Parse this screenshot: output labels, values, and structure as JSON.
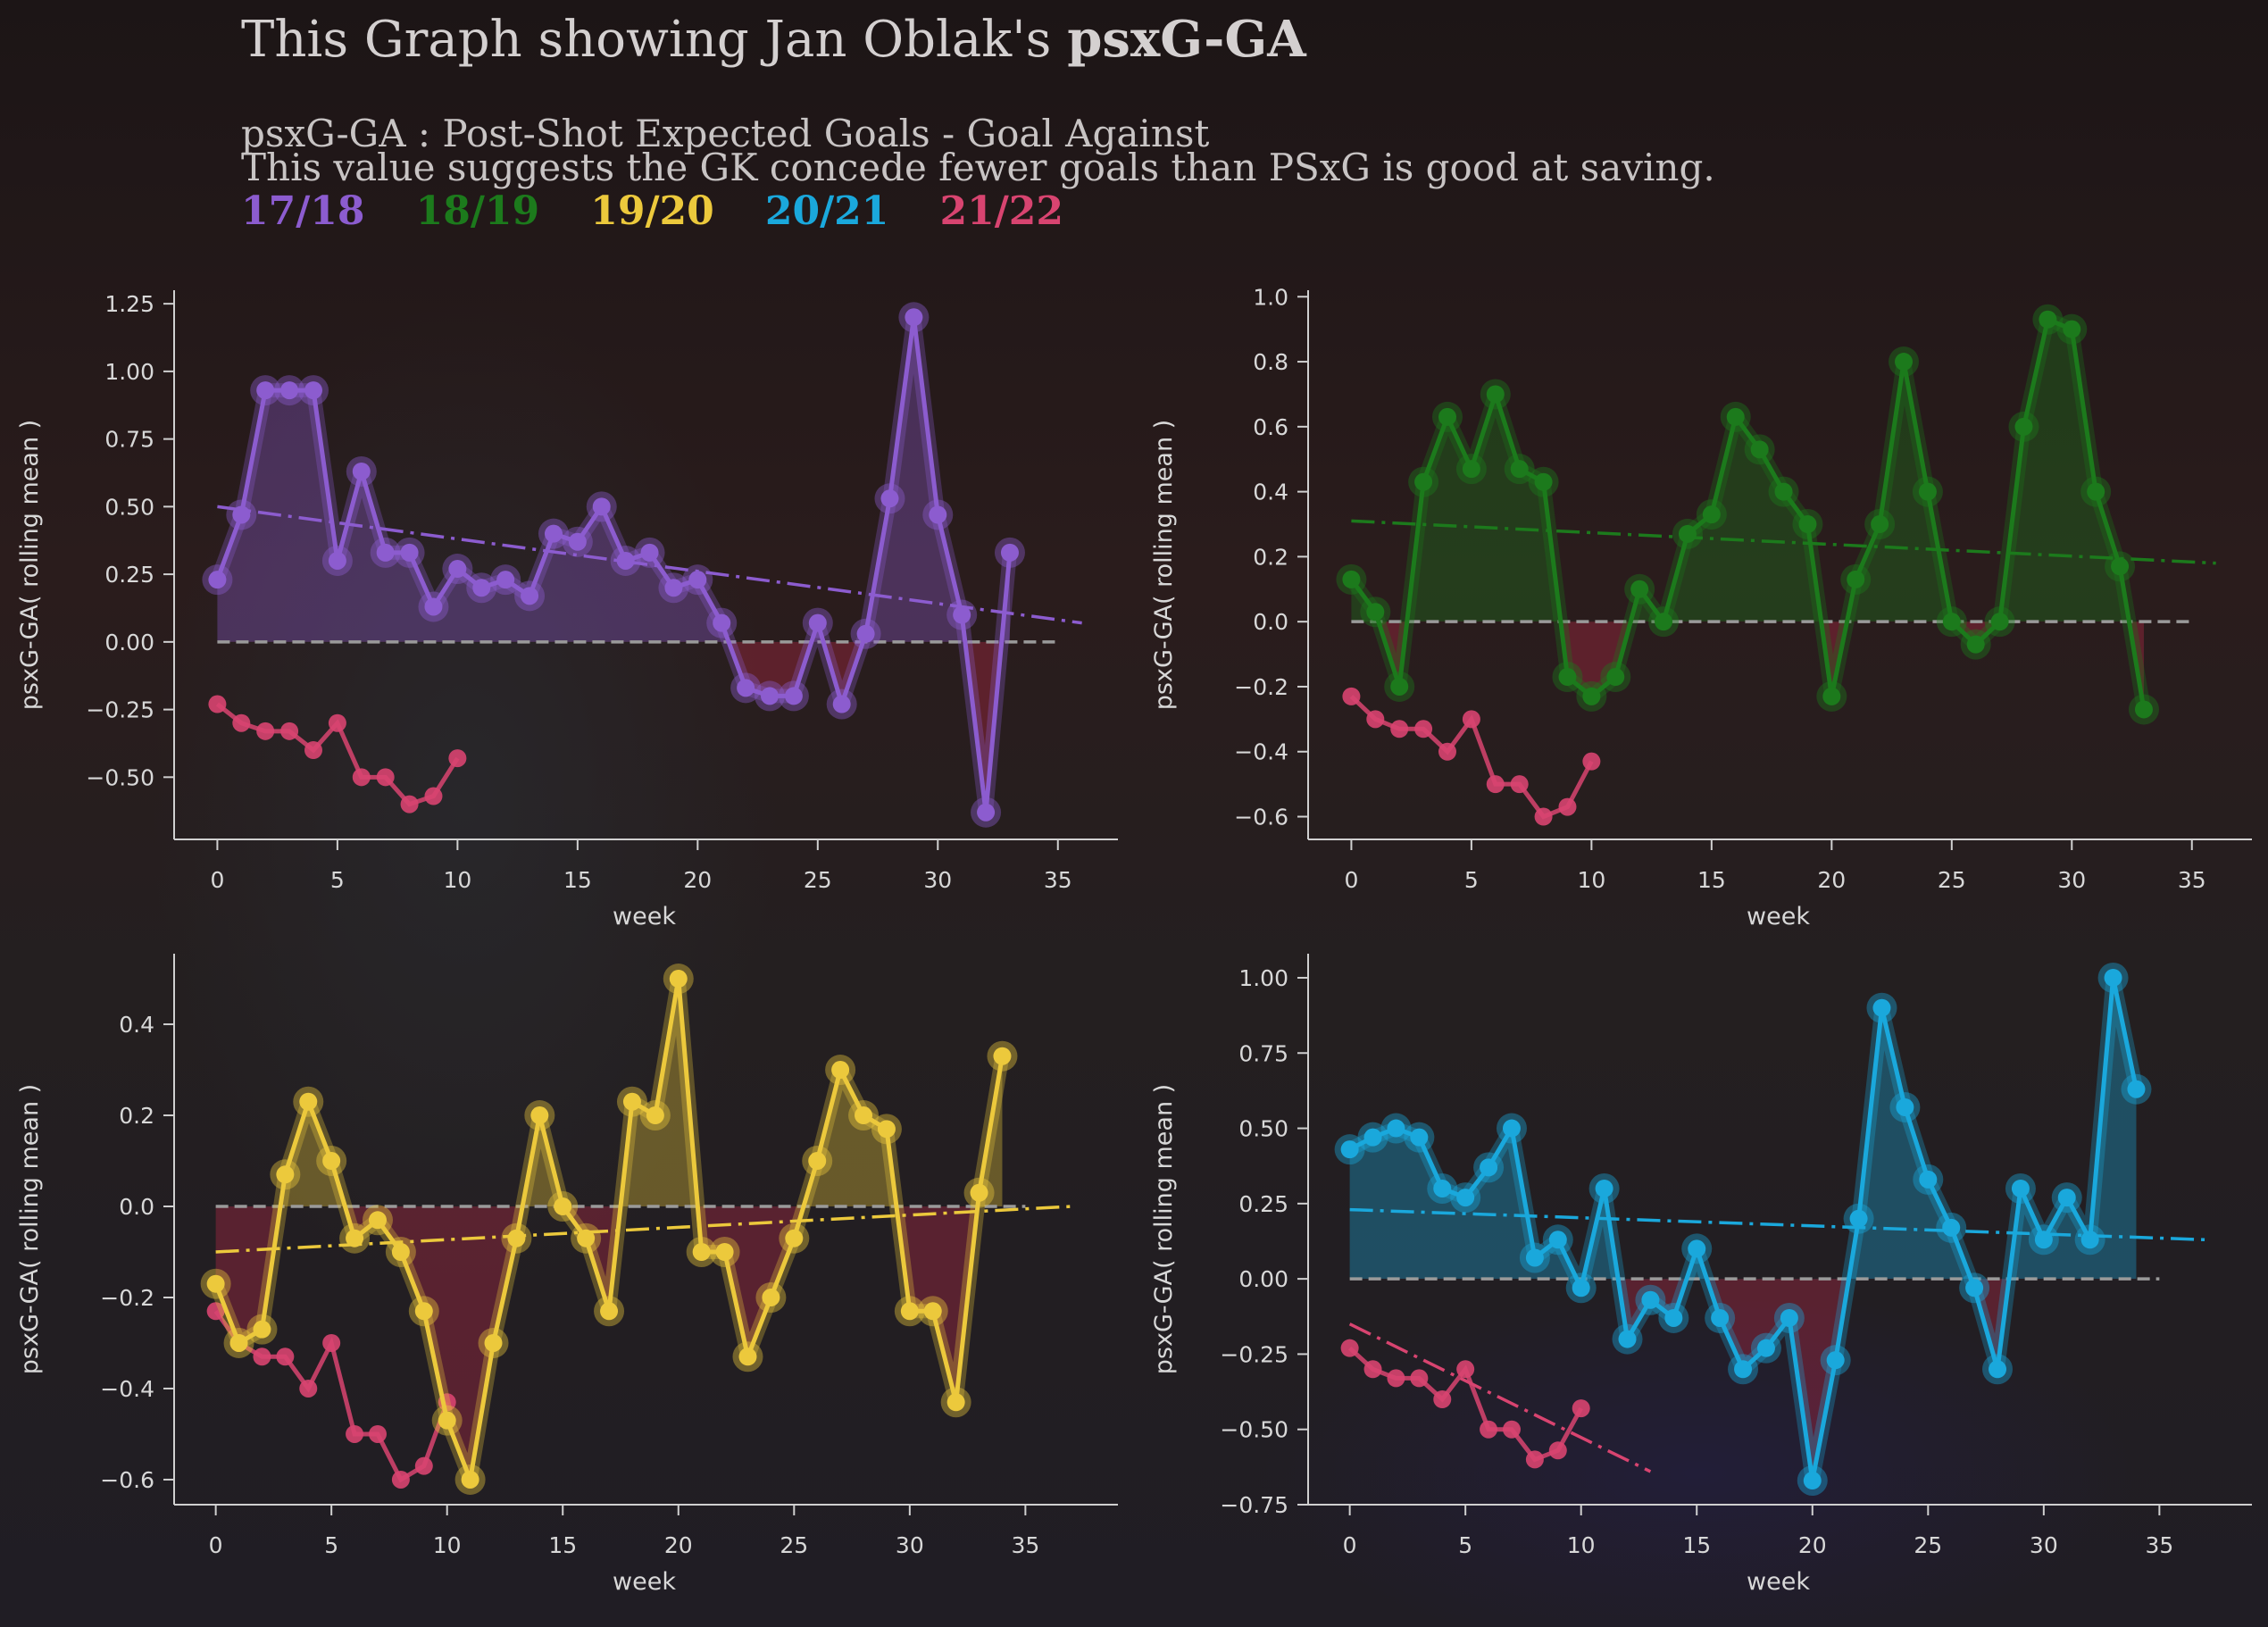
{
  "header": {
    "title_prefix": "This Graph showing Jan Oblak's ",
    "title_bold": "psxG-GA",
    "subtitle_line1": "psxG-GA : Post-Shot Expected Goals - Goal Against",
    "subtitle_line2": "This value suggests the GK concede fewer goals than PSxG is good at saving."
  },
  "seasons": [
    {
      "label": "17/18",
      "color": "#8c5ccf"
    },
    {
      "label": "18/19",
      "color": "#1c7a1c"
    },
    {
      "label": "19/20",
      "color": "#ecc93c"
    },
    {
      "label": "20/21",
      "color": "#1aa8dc"
    },
    {
      "label": "21/22",
      "color": "#d84470"
    }
  ],
  "chart_data": [
    {
      "type": "line",
      "season": "17/18",
      "color": "#8c5ccf",
      "xlabel": "week",
      "ylabel": "psxG-GA( rolling mean )",
      "xlim": [
        -1.8,
        37.5
      ],
      "ylim": [
        -0.73,
        1.3
      ],
      "xticks": [
        0,
        5,
        10,
        15,
        20,
        25,
        30,
        35
      ],
      "yticks": [
        1.25,
        1.0,
        0.75,
        0.5,
        0.25,
        0.0,
        -0.25,
        -0.5
      ],
      "ytick_labels": [
        "1.25",
        "1.00",
        "0.75",
        "0.50",
        "0.25",
        "0.00",
        "−0.25",
        "−0.50"
      ],
      "xtick_labels": [
        "0",
        "5",
        "10",
        "15",
        "20",
        "25",
        "30",
        "35"
      ],
      "zero_line_end": 35,
      "x": [
        0,
        1,
        2,
        3,
        4,
        5,
        6,
        7,
        8,
        9,
        10,
        11,
        12,
        13,
        14,
        15,
        16,
        17,
        18,
        19,
        20,
        21,
        22,
        23,
        24,
        25,
        26,
        27,
        28,
        29,
        30,
        31,
        32,
        33
      ],
      "values": [
        0.23,
        0.47,
        0.93,
        0.93,
        0.93,
        0.3,
        0.63,
        0.33,
        0.33,
        0.13,
        0.27,
        0.2,
        0.23,
        0.17,
        0.4,
        0.37,
        0.5,
        0.3,
        0.33,
        0.2,
        0.23,
        0.07,
        -0.17,
        -0.2,
        -0.2,
        0.07,
        -0.23,
        0.03,
        0.53,
        1.2,
        0.47,
        0.1,
        -0.63,
        0.33
      ],
      "trend": {
        "x0": 0,
        "y0": 0.5,
        "x1": 36,
        "y1": 0.07
      },
      "comparison": {
        "season": "21/22",
        "x": [
          0,
          1,
          2,
          3,
          4,
          5,
          6,
          7,
          8,
          9,
          10
        ],
        "values": [
          -0.23,
          -0.3,
          -0.33,
          -0.33,
          -0.4,
          -0.3,
          -0.5,
          -0.5,
          -0.6,
          -0.57,
          -0.43
        ]
      }
    },
    {
      "type": "line",
      "season": "18/19",
      "color": "#1c7a1c",
      "xlabel": "week",
      "ylabel": "psxG-GA( rolling mean )",
      "xlim": [
        -1.8,
        37.5
      ],
      "ylim": [
        -0.67,
        1.02
      ],
      "xticks": [
        0,
        5,
        10,
        15,
        20,
        25,
        30,
        35
      ],
      "yticks": [
        1.0,
        0.8,
        0.6,
        0.4,
        0.2,
        0.0,
        -0.2,
        -0.4,
        -0.6
      ],
      "ytick_labels": [
        "1.0",
        "0.8",
        "0.6",
        "0.4",
        "0.2",
        "0.0",
        "−0.2",
        "−0.4",
        "−0.6"
      ],
      "xtick_labels": [
        "0",
        "5",
        "10",
        "15",
        "20",
        "25",
        "30",
        "35"
      ],
      "zero_line_end": 35,
      "x": [
        0,
        1,
        2,
        3,
        4,
        5,
        6,
        7,
        8,
        9,
        10,
        11,
        12,
        13,
        14,
        15,
        16,
        17,
        18,
        19,
        20,
        21,
        22,
        23,
        24,
        25,
        26,
        27,
        28,
        29,
        30,
        31,
        32,
        33
      ],
      "values": [
        0.13,
        0.03,
        -0.2,
        0.43,
        0.63,
        0.47,
        0.7,
        0.47,
        0.43,
        -0.17,
        -0.23,
        -0.17,
        0.1,
        0.0,
        0.27,
        0.33,
        0.63,
        0.53,
        0.4,
        0.3,
        -0.23,
        0.13,
        0.3,
        0.8,
        0.4,
        0.0,
        -0.07,
        0.0,
        0.6,
        0.93,
        0.9,
        0.4,
        0.17,
        -0.27
      ],
      "trend": {
        "x0": 0,
        "y0": 0.31,
        "x1": 36,
        "y1": 0.18
      },
      "comparison": {
        "season": "21/22",
        "x": [
          0,
          1,
          2,
          3,
          4,
          5,
          6,
          7,
          8,
          9,
          10
        ],
        "values": [
          -0.23,
          -0.3,
          -0.33,
          -0.33,
          -0.4,
          -0.3,
          -0.5,
          -0.5,
          -0.6,
          -0.57,
          -0.43
        ]
      }
    },
    {
      "type": "line",
      "season": "19/20",
      "color": "#ecc93c",
      "xlabel": "week",
      "ylabel": "psxG-GA( rolling mean )",
      "xlim": [
        -1.8,
        39.0
      ],
      "ylim": [
        -0.655,
        0.555
      ],
      "xticks": [
        0,
        5,
        10,
        15,
        20,
        25,
        30,
        35
      ],
      "yticks": [
        0.4,
        0.2,
        0.0,
        -0.2,
        -0.4,
        -0.6
      ],
      "ytick_labels": [
        "0.4",
        "0.2",
        "0.0",
        "−0.2",
        "−0.4",
        "−0.6"
      ],
      "xtick_labels": [
        "0",
        "5",
        "10",
        "15",
        "20",
        "25",
        "30",
        "35"
      ],
      "zero_line_end": 35,
      "x": [
        0,
        1,
        2,
        3,
        4,
        5,
        6,
        7,
        8,
        9,
        10,
        11,
        12,
        13,
        14,
        15,
        16,
        17,
        18,
        19,
        20,
        21,
        22,
        23,
        24,
        25,
        26,
        27,
        28,
        29,
        30,
        31,
        32,
        33,
        34
      ],
      "values": [
        -0.17,
        -0.3,
        -0.27,
        0.07,
        0.23,
        0.1,
        -0.07,
        -0.03,
        -0.1,
        -0.23,
        -0.47,
        -0.6,
        -0.3,
        -0.07,
        0.2,
        0.0,
        -0.07,
        -0.23,
        0.23,
        0.2,
        0.5,
        -0.1,
        -0.1,
        -0.33,
        -0.2,
        -0.07,
        0.1,
        0.3,
        0.2,
        0.17,
        -0.23,
        -0.23,
        -0.43,
        0.03,
        0.33
      ],
      "trend": {
        "x0": 0,
        "y0": -0.1,
        "x1": 37,
        "y1": 0.0
      },
      "comparison": {
        "season": "21/22",
        "x": [
          0,
          1,
          2,
          3,
          4,
          5,
          6,
          7,
          8,
          9,
          10
        ],
        "values": [
          -0.23,
          -0.3,
          -0.33,
          -0.33,
          -0.4,
          -0.3,
          -0.5,
          -0.5,
          -0.6,
          -0.57,
          -0.43
        ]
      }
    },
    {
      "type": "line",
      "season": "20/21",
      "color": "#1aa8dc",
      "xlabel": "week",
      "ylabel": "psxG-GA( rolling mean )",
      "xlim": [
        -1.8,
        39.0
      ],
      "ylim": [
        -0.75,
        1.08
      ],
      "xticks": [
        0,
        5,
        10,
        15,
        20,
        25,
        30,
        35
      ],
      "yticks": [
        1.0,
        0.75,
        0.5,
        0.25,
        0.0,
        -0.25,
        -0.5,
        -0.75
      ],
      "ytick_labels": [
        "1.00",
        "0.75",
        "0.50",
        "0.25",
        "0.00",
        "−0.25",
        "−0.50",
        "−0.75"
      ],
      "xtick_labels": [
        "0",
        "5",
        "10",
        "15",
        "20",
        "25",
        "30",
        "35"
      ],
      "zero_line_end": 35,
      "x": [
        0,
        1,
        2,
        3,
        4,
        5,
        6,
        7,
        8,
        9,
        10,
        11,
        12,
        13,
        14,
        15,
        16,
        17,
        18,
        19,
        20,
        21,
        22,
        23,
        24,
        25,
        26,
        27,
        28,
        29,
        30,
        31,
        32,
        33,
        34
      ],
      "values": [
        0.43,
        0.47,
        0.5,
        0.47,
        0.3,
        0.27,
        0.37,
        0.5,
        0.07,
        0.13,
        -0.03,
        0.3,
        -0.2,
        -0.07,
        -0.13,
        0.1,
        -0.13,
        -0.3,
        -0.23,
        -0.13,
        -0.67,
        -0.27,
        0.2,
        0.9,
        0.57,
        0.33,
        0.17,
        -0.03,
        -0.3,
        0.3,
        0.13,
        0.27,
        0.13,
        1.0,
        0.63
      ],
      "trend": {
        "x0": 0,
        "y0": 0.23,
        "x1": 37,
        "y1": 0.13
      },
      "comparison": {
        "season": "21/22",
        "x": [
          0,
          1,
          2,
          3,
          4,
          5,
          6,
          7,
          8,
          9,
          10
        ],
        "values": [
          -0.23,
          -0.3,
          -0.33,
          -0.33,
          -0.4,
          -0.3,
          -0.5,
          -0.5,
          -0.6,
          -0.57,
          -0.43
        ],
        "trend": {
          "x0": 0,
          "y0": -0.15,
          "x1": 13,
          "y1": -0.64
        }
      }
    }
  ]
}
